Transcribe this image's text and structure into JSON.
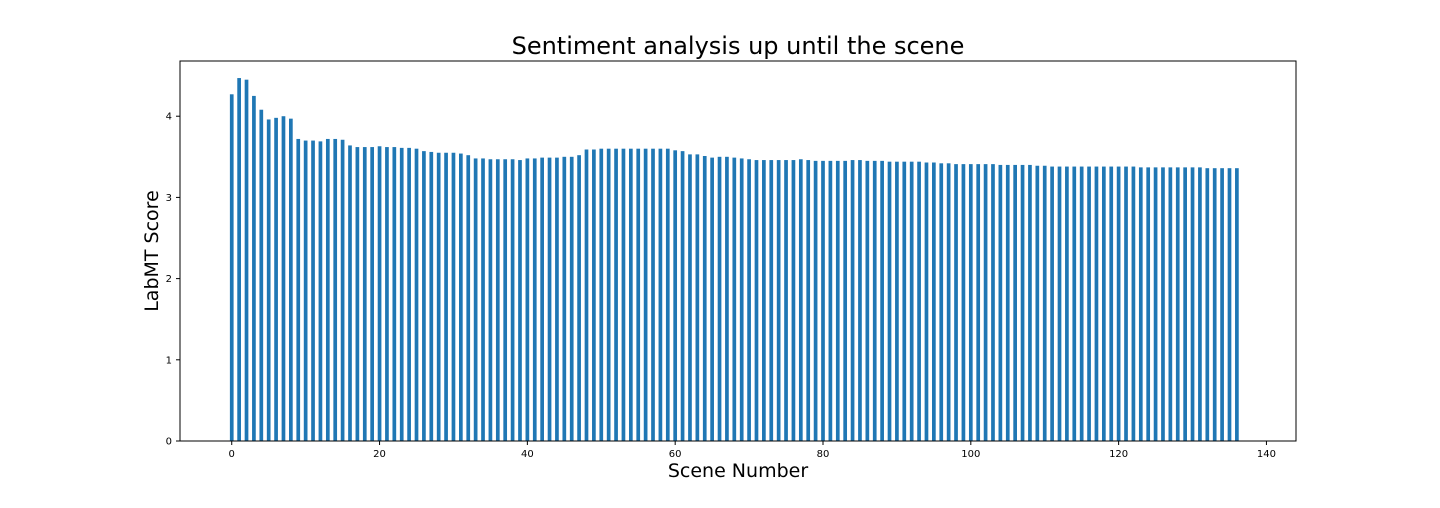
{
  "chart_data": {
    "type": "bar",
    "title": "Sentiment analysis up until the scene",
    "xlabel": "Scene Number",
    "ylabel": "LabMT Score",
    "xlim": [
      -7,
      144
    ],
    "ylim": [
      0,
      4.68
    ],
    "xticks": [
      0,
      20,
      40,
      60,
      80,
      100,
      120,
      140
    ],
    "yticks": [
      0,
      1,
      2,
      3,
      4
    ],
    "grid": false,
    "legend": "none",
    "bar_color": "#1f77b4",
    "bar_width": 0.5,
    "x": [
      0,
      1,
      2,
      3,
      4,
      5,
      6,
      7,
      8,
      9,
      10,
      11,
      12,
      13,
      14,
      15,
      16,
      17,
      18,
      19,
      20,
      21,
      22,
      23,
      24,
      25,
      26,
      27,
      28,
      29,
      30,
      31,
      32,
      33,
      34,
      35,
      36,
      37,
      38,
      39,
      40,
      41,
      42,
      43,
      44,
      45,
      46,
      47,
      48,
      49,
      50,
      51,
      52,
      53,
      54,
      55,
      56,
      57,
      58,
      59,
      60,
      61,
      62,
      63,
      64,
      65,
      66,
      67,
      68,
      69,
      70,
      71,
      72,
      73,
      74,
      75,
      76,
      77,
      78,
      79,
      80,
      81,
      82,
      83,
      84,
      85,
      86,
      87,
      88,
      89,
      90,
      91,
      92,
      93,
      94,
      95,
      96,
      97,
      98,
      99,
      100,
      101,
      102,
      103,
      104,
      105,
      106,
      107,
      108,
      109,
      110,
      111,
      112,
      113,
      114,
      115,
      116,
      117,
      118,
      119,
      120,
      121,
      122,
      123,
      124,
      125,
      126,
      127,
      128,
      129,
      130,
      131,
      132,
      133,
      134,
      135,
      136
    ],
    "values": [
      4.27,
      4.47,
      4.45,
      4.25,
      4.08,
      3.96,
      3.98,
      4.0,
      3.97,
      3.72,
      3.7,
      3.7,
      3.69,
      3.72,
      3.72,
      3.71,
      3.64,
      3.62,
      3.62,
      3.62,
      3.63,
      3.62,
      3.62,
      3.61,
      3.61,
      3.6,
      3.57,
      3.56,
      3.55,
      3.55,
      3.55,
      3.54,
      3.52,
      3.48,
      3.48,
      3.47,
      3.47,
      3.47,
      3.47,
      3.46,
      3.48,
      3.48,
      3.49,
      3.49,
      3.49,
      3.5,
      3.5,
      3.52,
      3.59,
      3.59,
      3.6,
      3.6,
      3.6,
      3.6,
      3.6,
      3.6,
      3.6,
      3.6,
      3.6,
      3.6,
      3.58,
      3.57,
      3.53,
      3.53,
      3.51,
      3.49,
      3.5,
      3.5,
      3.49,
      3.48,
      3.47,
      3.46,
      3.46,
      3.46,
      3.46,
      3.46,
      3.46,
      3.47,
      3.46,
      3.45,
      3.45,
      3.45,
      3.45,
      3.45,
      3.46,
      3.46,
      3.45,
      3.45,
      3.45,
      3.44,
      3.44,
      3.44,
      3.44,
      3.44,
      3.43,
      3.43,
      3.42,
      3.42,
      3.41,
      3.41,
      3.41,
      3.41,
      3.41,
      3.41,
      3.4,
      3.4,
      3.4,
      3.4,
      3.4,
      3.39,
      3.39,
      3.38,
      3.38,
      3.38,
      3.38,
      3.38,
      3.38,
      3.38,
      3.38,
      3.38,
      3.38,
      3.38,
      3.38,
      3.37,
      3.37,
      3.37,
      3.37,
      3.37,
      3.37,
      3.37,
      3.37,
      3.37,
      3.36,
      3.36,
      3.36,
      3.36,
      3.36
    ]
  }
}
